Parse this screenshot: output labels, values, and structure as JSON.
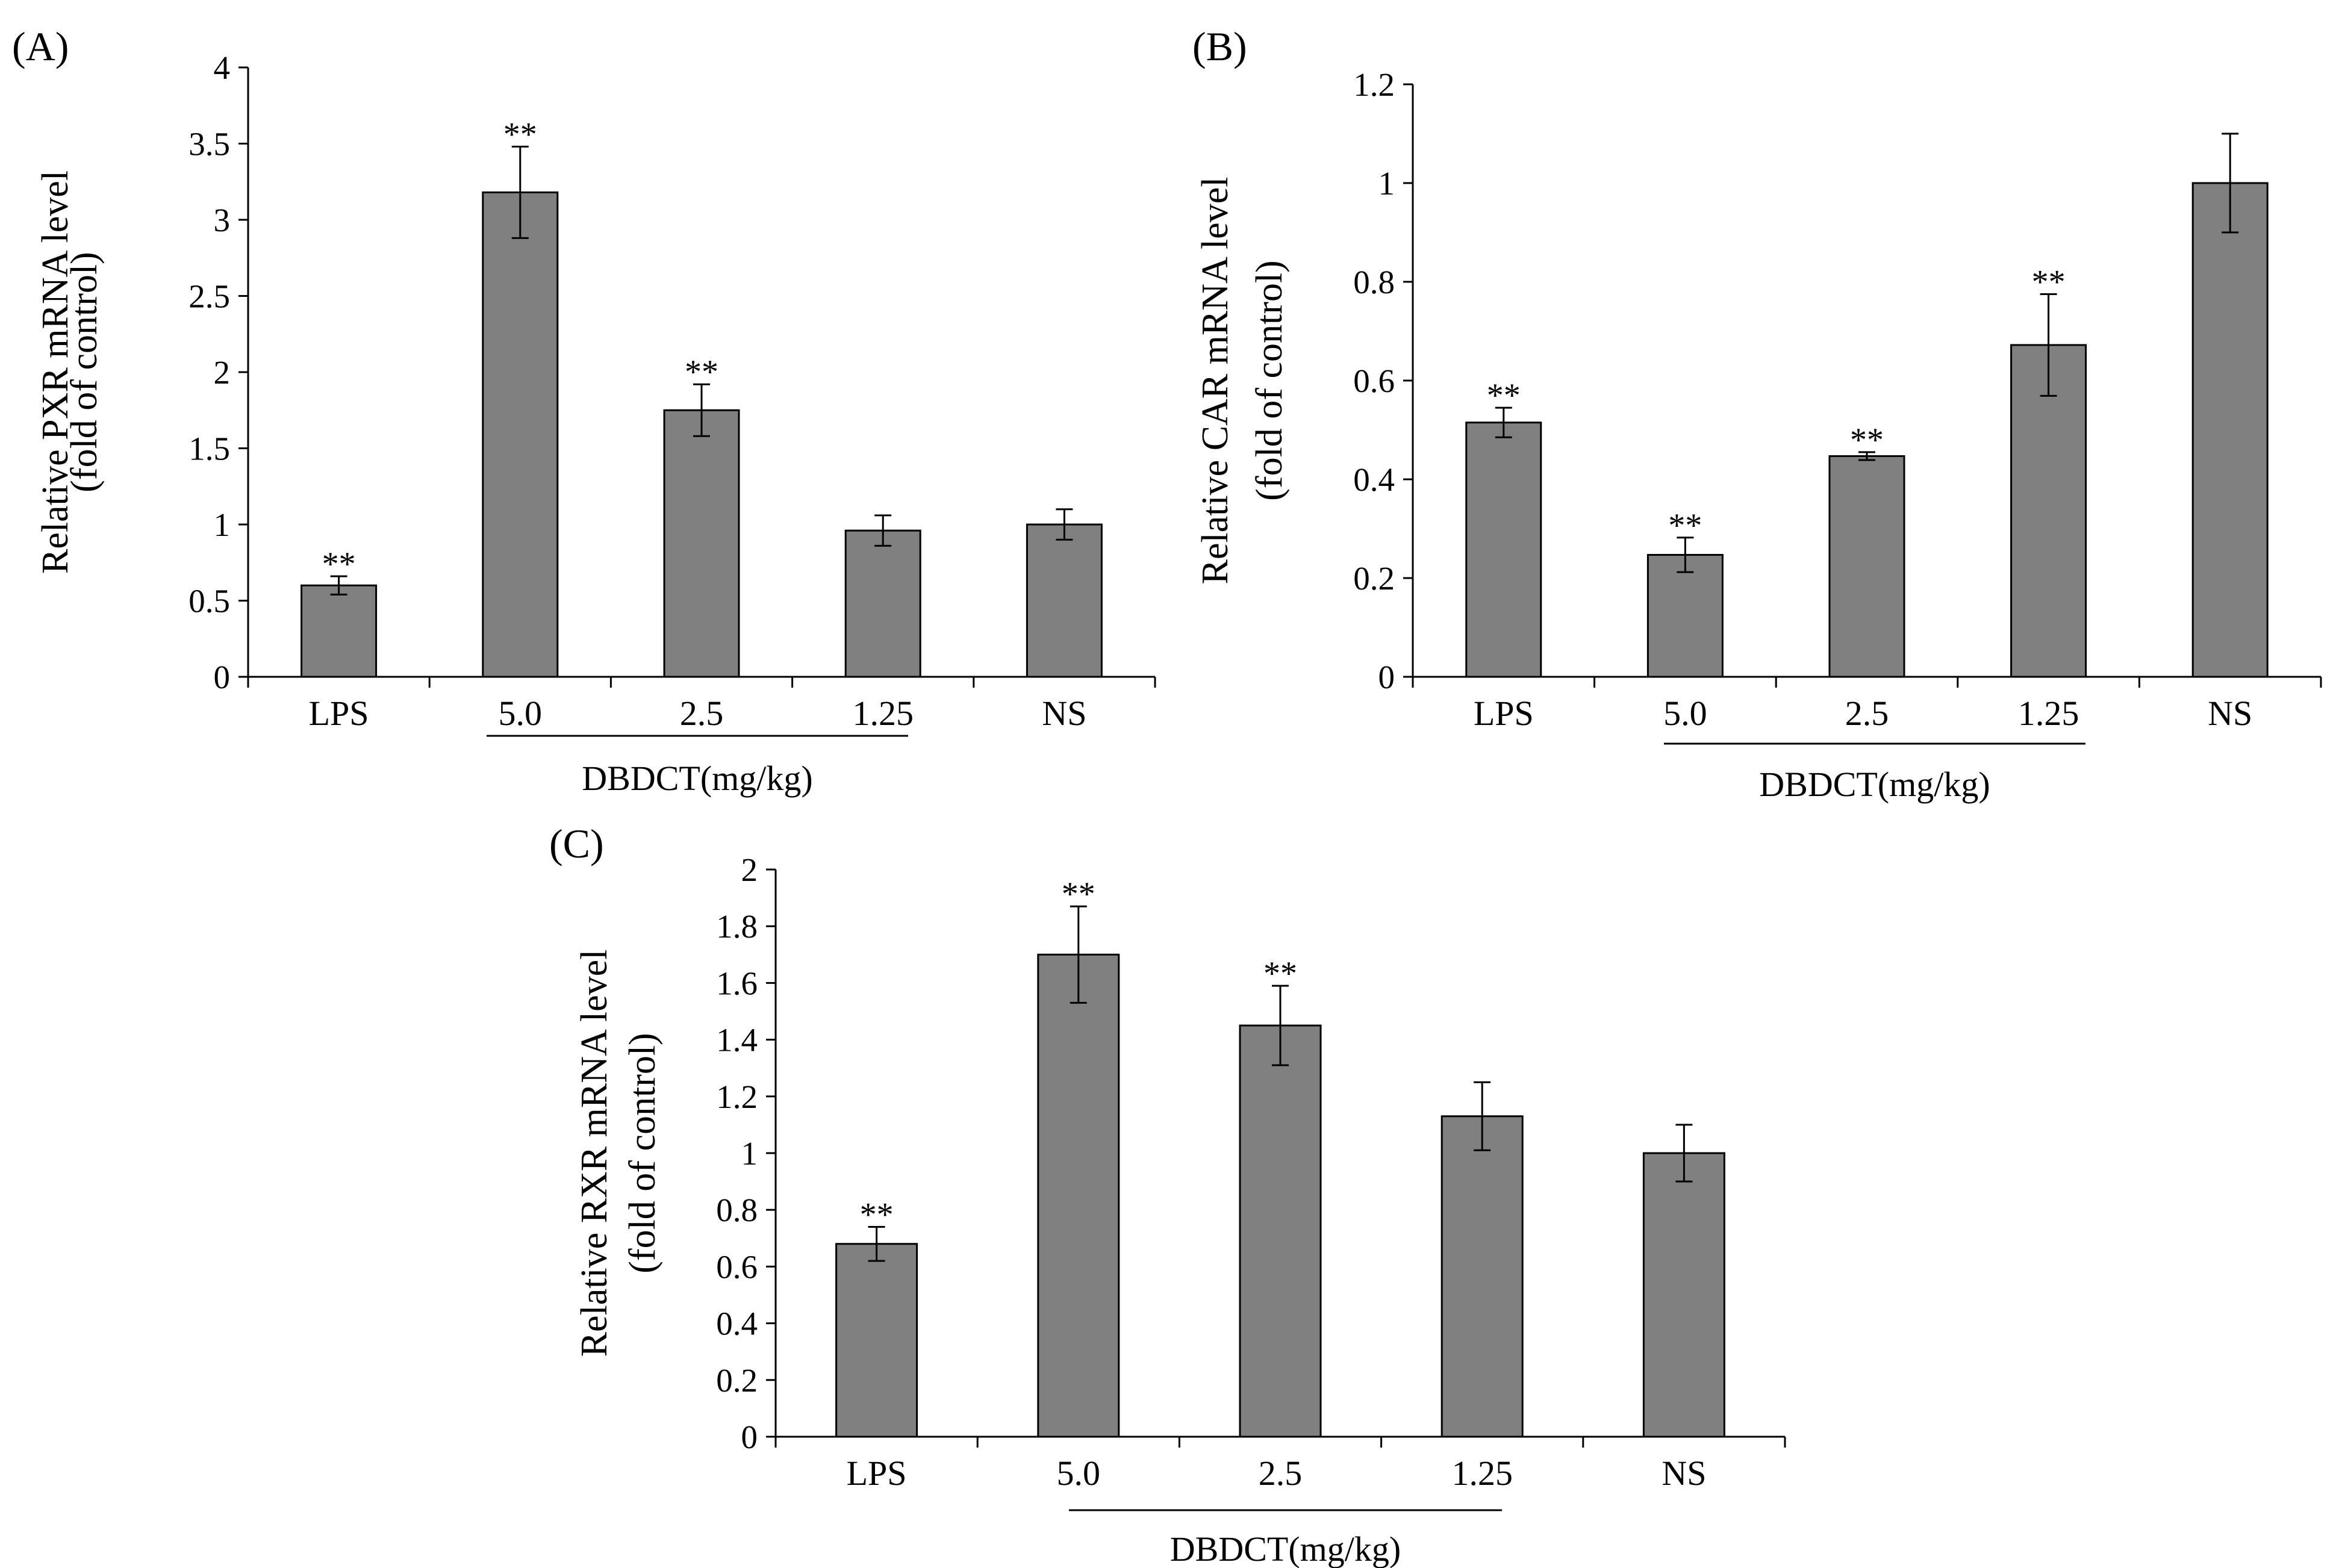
{
  "chart_data": [
    {
      "type": "bar",
      "panel_label": "(A)",
      "categories": [
        "LPS",
        "5.0",
        "2.5",
        "1.25",
        "NS"
      ],
      "values": [
        0.6,
        3.18,
        1.75,
        0.96,
        1.0
      ],
      "errors": [
        0.06,
        0.3,
        0.17,
        0.1,
        0.1
      ],
      "significance": [
        "**",
        "**",
        "**",
        "",
        ""
      ],
      "ylabel_line1": "Relative PXR mRNA level",
      "ylabel_line2": "(fold of control)",
      "group_label": "DBDCT(mg/kg)",
      "ylim": [
        0,
        4
      ],
      "yticks": [
        "0",
        "0.5",
        "1",
        "1.5",
        "2",
        "2.5",
        "3",
        "3.5",
        "4"
      ],
      "bar_color": "#808080"
    },
    {
      "type": "bar",
      "panel_label": "(B)",
      "categories": [
        "LPS",
        "5.0",
        "2.5",
        "1.25",
        "NS"
      ],
      "values": [
        0.515,
        0.247,
        0.447,
        0.672,
        1.0
      ],
      "errors": [
        0.03,
        0.035,
        0.008,
        0.103,
        0.1
      ],
      "significance": [
        "**",
        "**",
        "**",
        "**",
        ""
      ],
      "ylabel_line1": "Relative CAR mRNA level",
      "ylabel_line2": "(fold of control)",
      "group_label": "DBDCT(mg/kg)",
      "ylim": [
        0,
        1.2
      ],
      "yticks": [
        "0",
        "0.2",
        "0.4",
        "0.6",
        "0.8",
        "1",
        "1.2"
      ],
      "bar_color": "#808080"
    },
    {
      "type": "bar",
      "panel_label": "(C)",
      "categories": [
        "LPS",
        "5.0",
        "2.5",
        "1.25",
        "NS"
      ],
      "values": [
        0.68,
        1.7,
        1.45,
        1.13,
        1.0
      ],
      "errors": [
        0.06,
        0.17,
        0.14,
        0.12,
        0.1
      ],
      "significance": [
        "**",
        "**",
        "**",
        "",
        ""
      ],
      "ylabel_line1": "Relative RXR mRNA level",
      "ylabel_line2": "(fold of control)",
      "group_label": "DBDCT(mg/kg)",
      "ylim": [
        0,
        2
      ],
      "yticks": [
        "0",
        "0.2",
        "0.4",
        "0.6",
        "0.8",
        "1",
        "1.2",
        "1.4",
        "1.6",
        "1.8",
        "2"
      ],
      "bar_color": "#808080"
    }
  ]
}
